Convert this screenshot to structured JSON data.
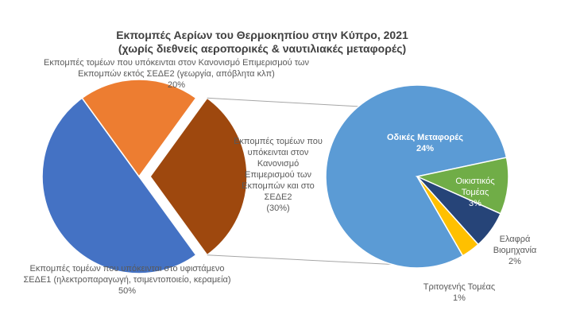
{
  "chart_data": {
    "type": "pie-of-pie",
    "title": "Εκπομπές Αερίων του Θερμοκηπίου στην Κύπρο, 2021",
    "subtitle": "(χωρίς διεθνείς αεροπορικές & ναυτιλιακές μεταφορές)",
    "categories": [
      "Εκπομπές τομέων που υπόκεινται στο υφιστάμενο ΣΕΔΕ1 (ηλεκτροπαραγωγή, τσιμεντοποιείο, κεραμεία)",
      "Εκπομπές τομέων που υπόκεινται στον Κανονισμό Επιμερισμού των Εκπομπών εκτός ΣΕΔΕ2 (γεωργία, απόβλητα κλπ)",
      "Εκπομπές τομέων που υπόκεινται στον Κανονισμό Επιμερισμού των Εκπομπών και στο ΣΕΔΕ2"
    ],
    "values": [
      50,
      20,
      30
    ],
    "value_labels": [
      "50%",
      "20%",
      "(30%)"
    ],
    "colors": [
      "#4472c4",
      "#ed7d31",
      "#9e480e"
    ],
    "secondary": {
      "categories": [
        "Οδικές Μεταφορές",
        "Οικιστικός Τομέας",
        "Ελαφρά Βιομηχανία",
        "Τριτογενής Τομέας"
      ],
      "values": [
        24,
        3,
        2,
        1
      ],
      "value_labels": [
        "24%",
        "3%",
        "2%",
        "1%"
      ],
      "colors": [
        "#5b9bd5",
        "#70ad47",
        "#264478",
        "#ffc000"
      ]
    }
  }
}
